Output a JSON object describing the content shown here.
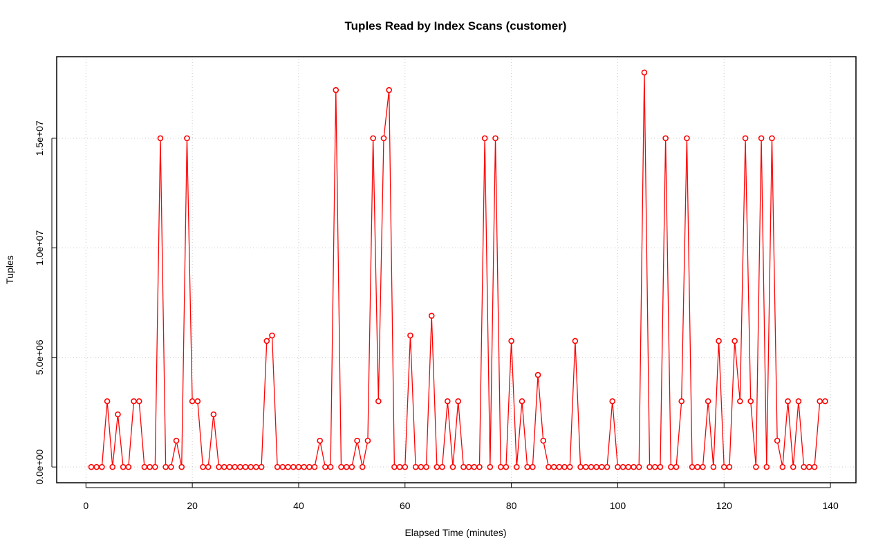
{
  "chart_data": {
    "type": "line",
    "title": "Tuples Read by Index Scans (customer)",
    "x_label": "Elapsed Time (minutes)",
    "y_label": "Tuples",
    "x": [
      1,
      2,
      3,
      4,
      5,
      6,
      7,
      8,
      9,
      10,
      11,
      12,
      13,
      14,
      15,
      16,
      17,
      18,
      19,
      20,
      21,
      22,
      23,
      24,
      25,
      26,
      27,
      28,
      29,
      30,
      31,
      32,
      33,
      34,
      35,
      36,
      37,
      38,
      39,
      40,
      41,
      42,
      43,
      44,
      45,
      46,
      47,
      48,
      49,
      50,
      51,
      52,
      53,
      54,
      55,
      56,
      57,
      58,
      59,
      60,
      61,
      62,
      63,
      64,
      65,
      66,
      67,
      68,
      69,
      70,
      71,
      72,
      73,
      74,
      75,
      76,
      77,
      78,
      79,
      80,
      81,
      82,
      83,
      84,
      85,
      86,
      87,
      88,
      89,
      90,
      91,
      92,
      93,
      94,
      95,
      96,
      97,
      98,
      99,
      100,
      101,
      102,
      103,
      104,
      105,
      106,
      107,
      108,
      109,
      110,
      111,
      112,
      113,
      114,
      115,
      116,
      117,
      118,
      119,
      120,
      121,
      122,
      123,
      124,
      125,
      126,
      127,
      128,
      129,
      130,
      131,
      132,
      133,
      134,
      135,
      136,
      137,
      138,
      139
    ],
    "series": [
      {
        "color": "#ff0000",
        "values": [
          0,
          0,
          0,
          3000000,
          0,
          2400000,
          0,
          0,
          3000000,
          3000000,
          0,
          0,
          0,
          15000000,
          0,
          0,
          1200000,
          0,
          15000000,
          3000000,
          3000000,
          0,
          0,
          2400000,
          0,
          0,
          0,
          0,
          0,
          0,
          0,
          0,
          0,
          5750000,
          6000000,
          0,
          0,
          0,
          0,
          0,
          0,
          0,
          0,
          1200000,
          0,
          0,
          17200000,
          0,
          0,
          0,
          1200000,
          0,
          1200000,
          15000000,
          3000000,
          15000000,
          17200000,
          0,
          0,
          0,
          6000000,
          0,
          0,
          0,
          6900000,
          0,
          0,
          3000000,
          0,
          3000000,
          0,
          0,
          0,
          0,
          15000000,
          0,
          15000000,
          0,
          0,
          5750000,
          0,
          3000000,
          0,
          0,
          4200000,
          1200000,
          0,
          0,
          0,
          0,
          0,
          5750000,
          0,
          0,
          0,
          0,
          0,
          0,
          3000000,
          0,
          0,
          0,
          0,
          0,
          18000000,
          0,
          0,
          0,
          15000000,
          0,
          0,
          3000000,
          15000000,
          0,
          0,
          0,
          3000000,
          0,
          5750000,
          0,
          0,
          5750000,
          3000000,
          15000000,
          3000000,
          0,
          15000000,
          0,
          15000000,
          1200000,
          0,
          3000000,
          0,
          3000000,
          0,
          0,
          0,
          3000000,
          3000000
        ]
      }
    ],
    "xlim": [
      -5.5,
      144.8
    ],
    "ylim": [
      -720000,
      18720000
    ],
    "xticks": [
      0,
      20,
      40,
      60,
      80,
      100,
      120,
      140
    ],
    "yticks": [
      {
        "value": 0,
        "label": "0.0e+00"
      },
      {
        "value": 5000000,
        "label": "5.0e+06"
      },
      {
        "value": 10000000,
        "label": "1.0e+07"
      },
      {
        "value": 15000000,
        "label": "1.5e+07"
      }
    ],
    "grid": true
  }
}
